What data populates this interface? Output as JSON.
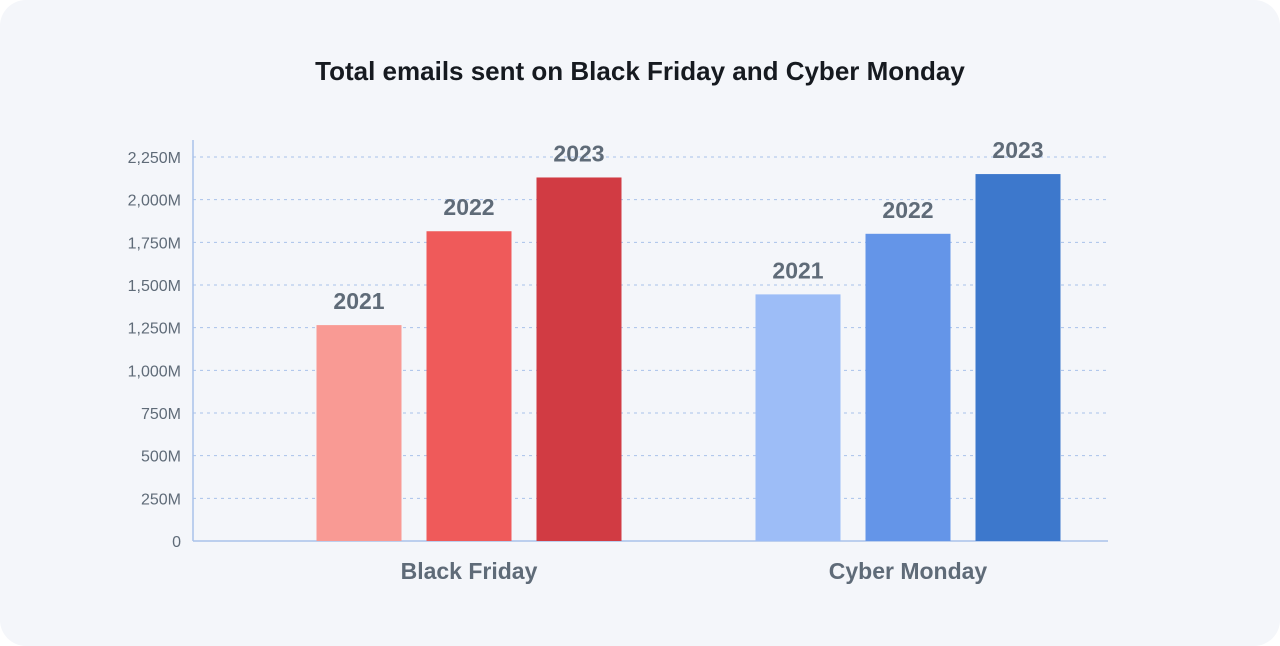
{
  "chart_data": {
    "type": "bar",
    "title": "Total emails sent on Black Friday and Cyber Monday",
    "xlabel": "",
    "ylabel": "",
    "categories": [
      "Black Friday",
      "Cyber Monday"
    ],
    "ylim": [
      0,
      2250
    ],
    "yticks": [
      0,
      250,
      500,
      750,
      1000,
      1250,
      1500,
      1750,
      2000,
      2250
    ],
    "ytick_labels": [
      "0",
      "250M",
      "500M",
      "750M",
      "1,000M",
      "1,250M",
      "1,500M",
      "1,750M",
      "2,000M",
      "2,250M"
    ],
    "grid": true,
    "legend": "none",
    "groups": [
      {
        "category": "Black Friday",
        "bars": [
          {
            "label": "2021",
            "value": 1265,
            "color": "#f99a94"
          },
          {
            "label": "2022",
            "value": 1815,
            "color": "#ef5a5a"
          },
          {
            "label": "2023",
            "value": 2130,
            "color": "#d13b43"
          }
        ]
      },
      {
        "category": "Cyber Monday",
        "bars": [
          {
            "label": "2021",
            "value": 1445,
            "color": "#9dbdf7"
          },
          {
            "label": "2022",
            "value": 1800,
            "color": "#6495e8"
          },
          {
            "label": "2023",
            "value": 2150,
            "color": "#3d78cc"
          }
        ]
      }
    ]
  },
  "colors": {
    "background": "#f4f6fa",
    "axis": "#a9c2ea",
    "grid": "#a9c2ea",
    "text": "#5f6b78",
    "title": "#161a20"
  }
}
